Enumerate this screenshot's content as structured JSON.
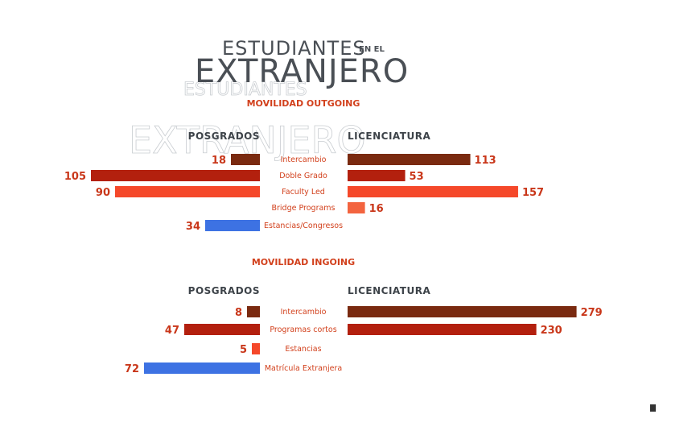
{
  "title": {
    "line1": "ESTUDIANTES",
    "line1_small": "EN EL",
    "line2": "EXTRANJERO"
  },
  "colors": {
    "title": "#4a4f55",
    "accent": "#d2401c",
    "intercambio": "#7a2a10",
    "doble_grado": "#b3200e",
    "faculty_led": "#f5482a",
    "bridge": "#f3643f",
    "estancias_blue": "#3d72e3"
  },
  "chart_data": [
    {
      "type": "bar",
      "title": "MOVILIDAD OUTGOING",
      "left_header": "POSGRADOS",
      "right_header": "LICENCIATURA",
      "categories": [
        "Intercambio",
        "Doble Grado",
        "Faculty Led",
        "Bridge Programs",
        "Estancias/Congresos"
      ],
      "series": [
        {
          "name": "POSGRADOS",
          "values": [
            18,
            105,
            90,
            null,
            34
          ]
        },
        {
          "name": "LICENCIATURA",
          "values": [
            113,
            53,
            157,
            16,
            null
          ]
        }
      ],
      "bar_colors": [
        "#7a2a10",
        "#b3200e",
        "#f5482a",
        "#f3643f",
        "#3d72e3"
      ]
    },
    {
      "type": "bar",
      "title": "MOVILIDAD INGOING",
      "left_header": "POSGRADOS",
      "right_header": "LICENCIATURA",
      "categories": [
        "Intercambio",
        "Programas cortos",
        "Estancias",
        "Matrícula Extranjera"
      ],
      "series": [
        {
          "name": "POSGRADOS",
          "values": [
            8,
            47,
            5,
            72
          ]
        },
        {
          "name": "LICENCIATURA",
          "values": [
            279,
            230,
            null,
            null
          ]
        }
      ],
      "bar_colors": [
        "#7a2a10",
        "#b3200e",
        "#f5482a",
        "#3d72e3"
      ]
    }
  ]
}
